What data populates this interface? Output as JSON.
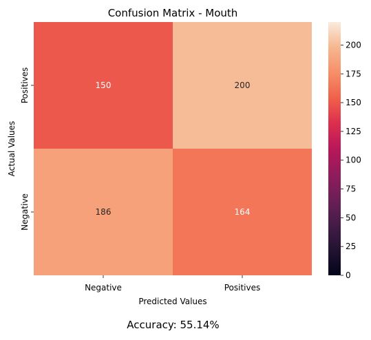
{
  "chart_data": {
    "type": "heatmap",
    "title": "Confusion Matrix - Mouth",
    "xlabel": "Predicted Values",
    "ylabel": "Actual Values",
    "x_categories": [
      "Negative",
      "Positives"
    ],
    "y_categories": [
      "Positives",
      "Negative"
    ],
    "values": [
      [
        150,
        200
      ],
      [
        186,
        164
      ]
    ],
    "colorbar": {
      "range": [
        0,
        220
      ],
      "ticks": [
        0,
        25,
        50,
        75,
        100,
        125,
        150,
        175,
        200
      ],
      "colormap": "rocket"
    },
    "grid": false,
    "legend": "none"
  },
  "footer": {
    "accuracy_text": "Accuracy: 55.14%"
  }
}
